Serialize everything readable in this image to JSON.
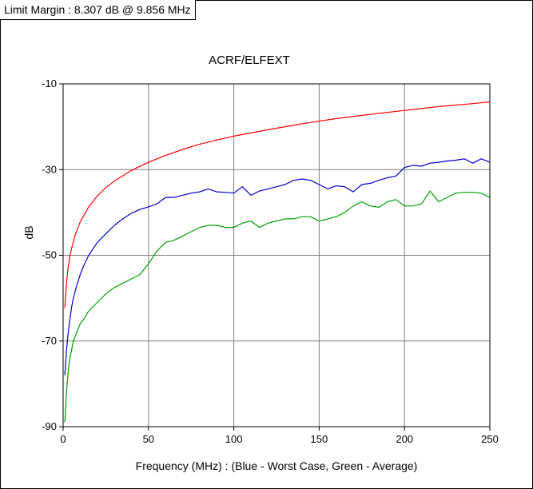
{
  "header": {
    "limit_margin_text": "Limit Margin : 8.307 dB @ 9.856 MHz"
  },
  "chart_data": {
    "type": "line",
    "title": "ACRF/ELFEXT",
    "xlabel": "Frequency (MHz) : (Blue - Worst Case, Green - Average)",
    "ylabel": "dB",
    "xlim": [
      0,
      250
    ],
    "ylim": [
      -90,
      -10
    ],
    "x_ticks": [
      0,
      50,
      100,
      150,
      200,
      250
    ],
    "y_ticks": [
      -10,
      -30,
      -50,
      -70,
      -90
    ],
    "grid": true,
    "series": [
      {
        "color": "#ff0000",
        "x": [
          1,
          2,
          3,
          4,
          5,
          7,
          10,
          15,
          20,
          25,
          30,
          40,
          50,
          60,
          70,
          80,
          90,
          100,
          120,
          140,
          160,
          180,
          200,
          220,
          240,
          250
        ],
        "y": [
          -62.3,
          -56.3,
          -52.7,
          -50.2,
          -48.3,
          -45.3,
          -42.2,
          -38.7,
          -36.2,
          -34.2,
          -32.7,
          -30.2,
          -28.3,
          -26.7,
          -25.3,
          -24.1,
          -23.1,
          -22.2,
          -20.7,
          -19.3,
          -18.1,
          -17.1,
          -16.2,
          -15.3,
          -14.6,
          -14.2
        ]
      },
      {
        "color": "#0000cc",
        "x": [
          1,
          2,
          3,
          4,
          5,
          6,
          8,
          10,
          12,
          15,
          20,
          25,
          30,
          35,
          40,
          45,
          50,
          55,
          60,
          65,
          70,
          75,
          80,
          85,
          90,
          95,
          100,
          105,
          110,
          115,
          120,
          125,
          130,
          135,
          140,
          145,
          150,
          155,
          160,
          165,
          170,
          175,
          180,
          185,
          190,
          195,
          200,
          205,
          210,
          215,
          220,
          225,
          230,
          235,
          240,
          245,
          250
        ],
        "y": [
          -78,
          -72,
          -68,
          -65,
          -62,
          -60,
          -57,
          -54.5,
          -52.5,
          -50,
          -47,
          -45,
          -43,
          -41.5,
          -40.2,
          -39.3,
          -38.7,
          -38,
          -36.5,
          -36.5,
          -36,
          -35.5,
          -35.2,
          -34.5,
          -35.2,
          -35.3,
          -35.5,
          -34,
          -36,
          -35,
          -34.5,
          -34,
          -33.5,
          -32.5,
          -32.2,
          -32.5,
          -33.5,
          -34.5,
          -33.8,
          -34,
          -35.2,
          -33.5,
          -33.2,
          -32.5,
          -31.9,
          -31.5,
          -29.5,
          -29,
          -29.2,
          -28.5,
          -28.3,
          -28,
          -27.8,
          -27.5,
          -28.5,
          -27.5,
          -28.3
        ]
      },
      {
        "color": "#00a000",
        "x": [
          1,
          2,
          3,
          4,
          5,
          6,
          8,
          10,
          12,
          15,
          20,
          25,
          30,
          35,
          40,
          45,
          50,
          55,
          60,
          65,
          70,
          75,
          80,
          85,
          90,
          95,
          100,
          105,
          110,
          115,
          120,
          125,
          130,
          135,
          140,
          145,
          150,
          155,
          160,
          165,
          170,
          175,
          180,
          185,
          190,
          195,
          200,
          205,
          210,
          215,
          220,
          225,
          230,
          235,
          240,
          245,
          250
        ],
        "y": [
          -89,
          -82,
          -77,
          -74,
          -72,
          -70,
          -68,
          -66,
          -65,
          -63,
          -61,
          -59,
          -57.5,
          -56.5,
          -55.5,
          -54.5,
          -52,
          -49,
          -47,
          -46.5,
          -45.5,
          -44.5,
          -43.5,
          -43,
          -43,
          -43.5,
          -43.5,
          -42.5,
          -42,
          -43.5,
          -42.5,
          -42,
          -41.5,
          -41.5,
          -41,
          -41,
          -42,
          -41.5,
          -41,
          -40,
          -38.5,
          -37.5,
          -38.5,
          -38.8,
          -37.5,
          -37,
          -38.5,
          -38.5,
          -38,
          -35,
          -37.5,
          -36.5,
          -35.5,
          -35.3,
          -35.3,
          -35.5,
          -36.5
        ]
      }
    ]
  }
}
